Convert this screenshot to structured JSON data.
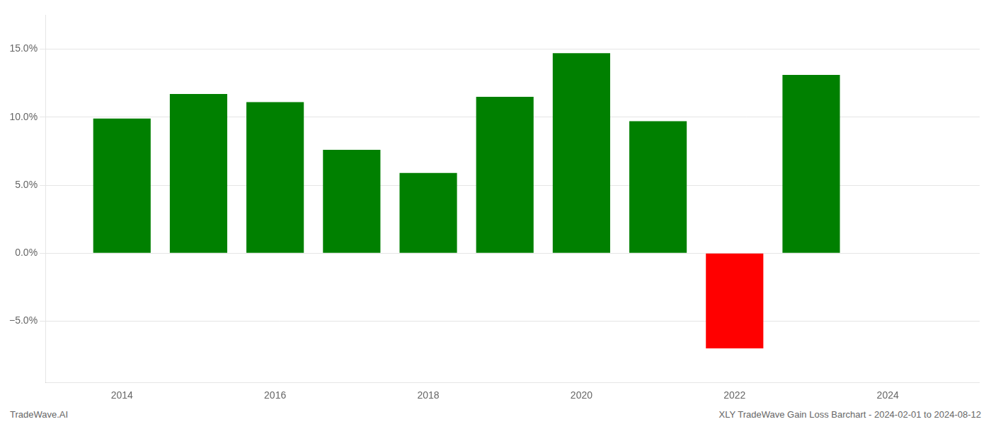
{
  "chart_data": {
    "type": "bar",
    "x": [
      2014,
      2015,
      2016,
      2017,
      2018,
      2019,
      2020,
      2021,
      2022,
      2023
    ],
    "values": [
      0.099,
      0.117,
      0.111,
      0.076,
      0.059,
      0.115,
      0.147,
      0.097,
      -0.07,
      0.131
    ],
    "colors": [
      "#008000",
      "#008000",
      "#008000",
      "#008000",
      "#008000",
      "#008000",
      "#008000",
      "#008000",
      "#ff0000",
      "#008000"
    ],
    "xlim": [
      2013.0,
      2025.2
    ],
    "xticks": [
      2014,
      2016,
      2018,
      2020,
      2022,
      2024
    ],
    "ylim": [
      -0.095,
      0.175
    ],
    "yticks": [
      {
        "value": -0.05,
        "label": "−5.0%"
      },
      {
        "value": 0.0,
        "label": "0.0%"
      },
      {
        "value": 0.05,
        "label": "5.0%"
      },
      {
        "value": 0.1,
        "label": "10.0%"
      },
      {
        "value": 0.15,
        "label": "15.0%"
      }
    ],
    "grid": "y",
    "annotations": [
      "TradeWave.AI",
      "XLY TradeWave Gain Loss Barchart - 2024-02-01 to 2024-08-12"
    ]
  }
}
